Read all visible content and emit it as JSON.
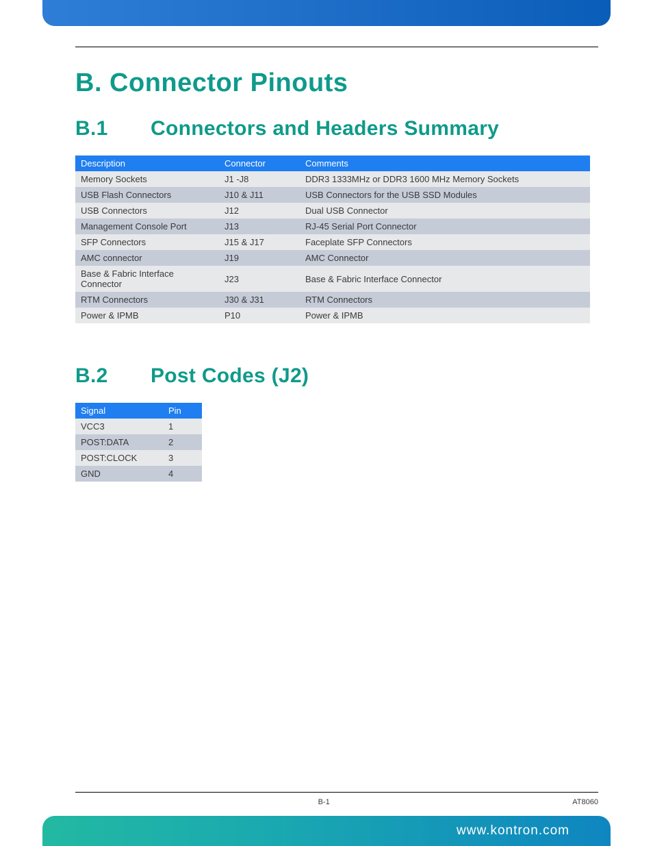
{
  "colors": {
    "heading": "#0f9a8a",
    "table_header_bg": "#1f7ef0",
    "table_header_text": "#ffffff",
    "row_even_bg": "#e7e8ea",
    "row_odd_bg": "#c6cbd8",
    "body_text": "#3a3a3a",
    "top_bar_gradient_from": "#2e7dd6",
    "top_bar_gradient_to": "#0a5db8",
    "footer_gradient_from": "#22b9a2",
    "footer_gradient_to": "#0f86c0"
  },
  "typography": {
    "h1_fontsize": 38,
    "h2_fontsize": 30,
    "table_fontsize": 13,
    "footer_fontsize": 19,
    "meta_fontsize": 11,
    "heading_weight": 600
  },
  "headings": {
    "h1": "B.  Connector Pinouts",
    "h2a_num": "B.1",
    "h2a_text": "Connectors and Headers Summary",
    "h2b_num": "B.2",
    "h2b_text": "Post Codes (J2)"
  },
  "table1": {
    "columns": [
      "Description",
      "Connector",
      "Comments"
    ],
    "rows": [
      [
        "Memory Sockets",
        "J1 -J8",
        "DDR3 1333MHz or DDR3 1600 MHz Memory Sockets"
      ],
      [
        "USB Flash Connectors",
        "J10 & J11",
        "USB Connectors for the USB SSD Modules"
      ],
      [
        "USB Connectors",
        "J12",
        "Dual USB Connector"
      ],
      [
        "Management Console Port",
        "J13",
        "RJ-45 Serial Port Connector"
      ],
      [
        "SFP Connectors",
        "J15 & J17",
        "Faceplate SFP Connectors"
      ],
      [
        "AMC connector",
        "J19",
        "AMC Connector"
      ],
      [
        "Base & Fabric Interface Connector",
        "J23",
        "Base & Fabric Interface Connector"
      ],
      [
        "RTM Connectors",
        "J30 & J31",
        "RTM Connectors"
      ],
      [
        "Power & IPMB",
        "P10",
        "Power & IPMB"
      ]
    ]
  },
  "table2": {
    "columns": [
      "Signal",
      "Pin"
    ],
    "rows": [
      [
        "VCC3",
        "1"
      ],
      [
        "POST:DATA",
        "2"
      ],
      [
        "POST:CLOCK",
        "3"
      ],
      [
        "GND",
        "4"
      ]
    ]
  },
  "footer": {
    "page": "B-1",
    "model": "AT8060",
    "url": "www.kontron.com"
  }
}
